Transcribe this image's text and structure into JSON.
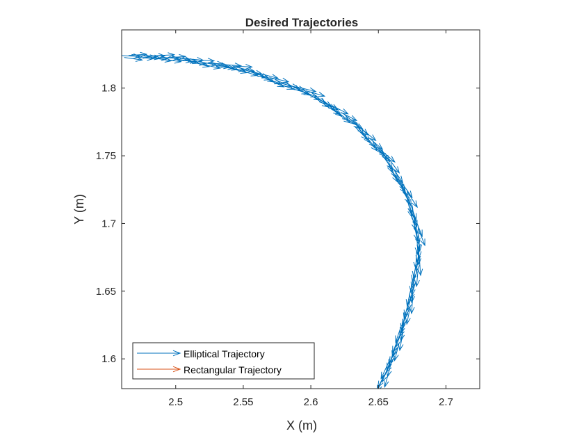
{
  "chart_data": {
    "type": "quiver",
    "title": "Desired Trajectories",
    "xlabel": "X (m)",
    "ylabel": "Y (m)",
    "xlim": [
      2.46,
      2.725
    ],
    "ylim": [
      1.578,
      1.843
    ],
    "xticks": [
      2.5,
      2.55,
      2.6,
      2.65,
      2.7
    ],
    "xtick_labels": [
      "2.5",
      "2.55",
      "2.6",
      "2.65",
      "2.7"
    ],
    "yticks": [
      1.6,
      1.65,
      1.7,
      1.75,
      1.8
    ],
    "ytick_labels": [
      "1.6",
      "1.65",
      "1.7",
      "1.75",
      "1.8"
    ],
    "grid": false,
    "legend_position": "bottom-left",
    "series": [
      {
        "name": "Elliptical Trajectory",
        "color": "#0072BD",
        "path": [
          [
            2.46,
            1.824
          ],
          [
            2.5,
            1.822
          ],
          [
            2.55,
            1.814
          ],
          [
            2.6,
            1.796
          ],
          [
            2.63,
            1.776
          ],
          [
            2.655,
            1.75
          ],
          [
            2.672,
            1.72
          ],
          [
            2.68,
            1.69
          ],
          [
            2.679,
            1.67
          ],
          [
            2.673,
            1.64
          ],
          [
            2.664,
            1.61
          ],
          [
            2.654,
            1.585
          ],
          [
            2.649,
            1.575
          ]
        ]
      },
      {
        "name": "Rectangular Trajectory",
        "color": "#D95319",
        "path": []
      }
    ]
  }
}
